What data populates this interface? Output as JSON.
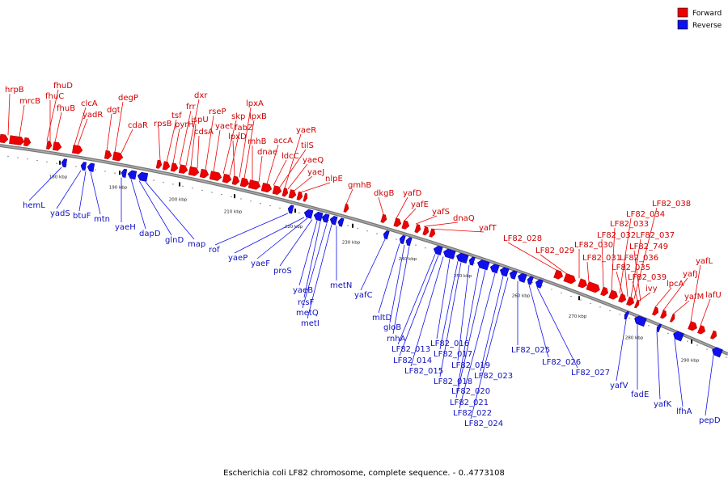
{
  "legend": {
    "forward": {
      "label": "Forward",
      "color": "#ee0000"
    },
    "reverse": {
      "label": "Reverse",
      "color": "#1010ee"
    }
  },
  "caption": "Escherichia coli LF82 chromosome, complete sequence. - 0..4773108",
  "axis_ticks": [
    "180 kbp",
    "190 kbp",
    "200 kbp",
    "210 kbp",
    "220 kbp",
    "230 kbp",
    "240 kbp",
    "250 kbp",
    "260 kbp",
    "270 kbp",
    "280 kbp",
    "290 kbp"
  ],
  "forward_genes": [
    "hrpB",
    "mrcB",
    "fhuD",
    "fhuC",
    "fhuB",
    "clcA",
    "yadR",
    "dgt",
    "degP",
    "cdaR",
    "rpsB",
    "tsf",
    "pyrH",
    "frr",
    "dxr",
    "ispU",
    "cdsA",
    "rseP",
    "yaet",
    "skp",
    "fabZ",
    "lpxD",
    "lpxA",
    "lpxB",
    "rnhB",
    "dnae",
    "accA",
    "ldcC",
    "tilS",
    "yaeR",
    "yaeQ",
    "yaeJ",
    "nlpE",
    "gmhB",
    "dkgB",
    "yafD",
    "yafE",
    "yafS",
    "dnaQ",
    "yafT",
    "LF82_028",
    "LF82_029",
    "LF82_030",
    "LF82_031",
    "LF82_032",
    "LF82_033",
    "LF82_034",
    "LF82_035",
    "LF82_036",
    "LF82_037",
    "LF82_038",
    "LF82_039",
    "LF82_749",
    "ivy",
    "lpcA",
    "yafJ",
    "yafM",
    "yafL",
    "lafU"
  ],
  "reverse_genes": [
    "hemL",
    "yadS",
    "btuF",
    "mtn",
    "yaeH",
    "dapD",
    "glnD",
    "map",
    "rof",
    "yaeP",
    "yaeF",
    "proS",
    "yaeB",
    "rcsF",
    "metQ",
    "metI",
    "metN",
    "yafC",
    "mltD",
    "gloB",
    "rnhA",
    "LF82_013",
    "LF82_014",
    "LF82_015",
    "LF82_016",
    "LF82_017",
    "LF82_018",
    "LF82_019",
    "LF82_020",
    "LF82_021",
    "LF82_022",
    "LF82_023",
    "LF82_024",
    "LF82_025",
    "LF82_026",
    "LF82_027",
    "yafV",
    "fadE",
    "yafK",
    "lfhA",
    "pepD"
  ]
}
